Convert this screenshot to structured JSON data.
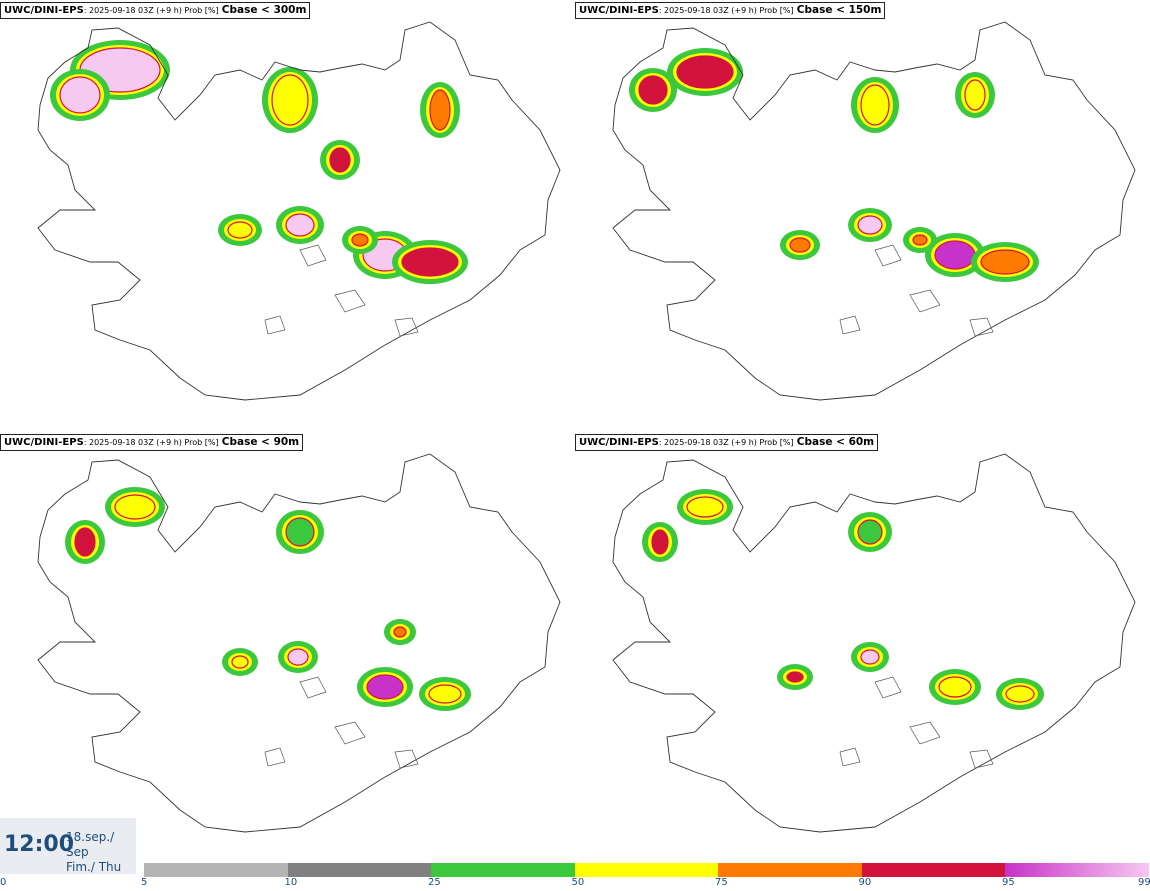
{
  "panels": [
    {
      "source": "UWC/DINI-EPS",
      "meta": ": 2025-09-18 03Z (+9 h) Prob [%]",
      "variable": "Cbase < 300m"
    },
    {
      "source": "UWC/DINI-EPS",
      "meta": ": 2025-09-18 03Z (+9 h) Prob [%]",
      "variable": "Cbase < 150m"
    },
    {
      "source": "UWC/DINI-EPS",
      "meta": ": 2025-09-18 03Z (+9 h) Prob [%]",
      "variable": "Cbase < 90m"
    },
    {
      "source": "UWC/DINI-EPS",
      "meta": ": 2025-09-18 03Z (+9 h) Prob [%]",
      "variable": "Cbase < 60m"
    }
  ],
  "valid": {
    "time": "12:00",
    "date_line1": "18.sep./ Sep",
    "date_line2": "Fim./ Thu"
  },
  "legend": {
    "ticks": [
      "0",
      "5",
      "10",
      "25",
      "50",
      "75",
      "90",
      "95",
      "99"
    ],
    "colors": [
      "#ffffff",
      "#b4b4b4",
      "#808080",
      "#3cc83c",
      "#ffff00",
      "#ff7a00",
      "#d2143c",
      "#c832c8"
    ],
    "top_color": "#f7c8f0"
  }
}
